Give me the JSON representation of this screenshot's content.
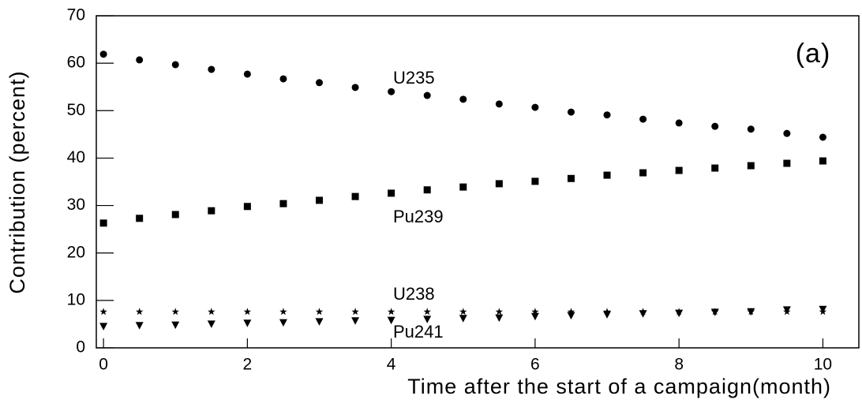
{
  "chart_data": {
    "type": "scatter",
    "x_label": "Time after the start of a campaign(month)",
    "y_label": "Contribution (percent)",
    "annotation": "(a)",
    "x": [
      0,
      0.5,
      1,
      1.5,
      2,
      2.5,
      3,
      3.5,
      4,
      4.5,
      5,
      5.5,
      6,
      6.5,
      7,
      7.5,
      8,
      8.5,
      9,
      9.5,
      10
    ],
    "series": [
      {
        "name": "U235",
        "color": "#000000",
        "marker": "circle",
        "values": [
          61.9,
          60.7,
          59.7,
          58.7,
          57.7,
          56.7,
          55.9,
          54.9,
          54.0,
          53.2,
          52.4,
          51.4,
          50.7,
          49.7,
          49.1,
          48.2,
          47.4,
          46.7,
          46.1,
          45.2,
          44.4
        ]
      },
      {
        "name": "Pu239",
        "color": "#000000",
        "marker": "square",
        "values": [
          26.3,
          27.3,
          28.1,
          28.9,
          29.8,
          30.4,
          31.1,
          31.9,
          32.6,
          33.3,
          33.9,
          34.6,
          35.1,
          35.7,
          36.4,
          36.9,
          37.4,
          37.9,
          38.4,
          38.9,
          39.4
        ]
      },
      {
        "name": "U238",
        "color": "#000000",
        "marker": "star",
        "values": [
          7.6,
          7.6,
          7.6,
          7.6,
          7.6,
          7.6,
          7.6,
          7.6,
          7.6,
          7.6,
          7.6,
          7.6,
          7.6,
          7.6,
          7.6,
          7.6,
          7.6,
          7.6,
          7.6,
          7.6,
          7.6
        ]
      },
      {
        "name": "Pu241",
        "color": "#000000",
        "marker": "triangle-down",
        "values": [
          4.5,
          4.7,
          4.8,
          5.0,
          5.2,
          5.3,
          5.5,
          5.7,
          5.8,
          6.0,
          6.2,
          6.3,
          6.6,
          6.8,
          7.0,
          7.2,
          7.3,
          7.5,
          7.6,
          8.0,
          8.1
        ]
      }
    ],
    "xlim": [
      -0.1,
      10.5
    ],
    "ylim": [
      0,
      70
    ],
    "xticks": [
      0,
      2,
      4,
      6,
      8,
      10
    ],
    "yticks": [
      0,
      10,
      20,
      30,
      40,
      50,
      60,
      70
    ]
  }
}
